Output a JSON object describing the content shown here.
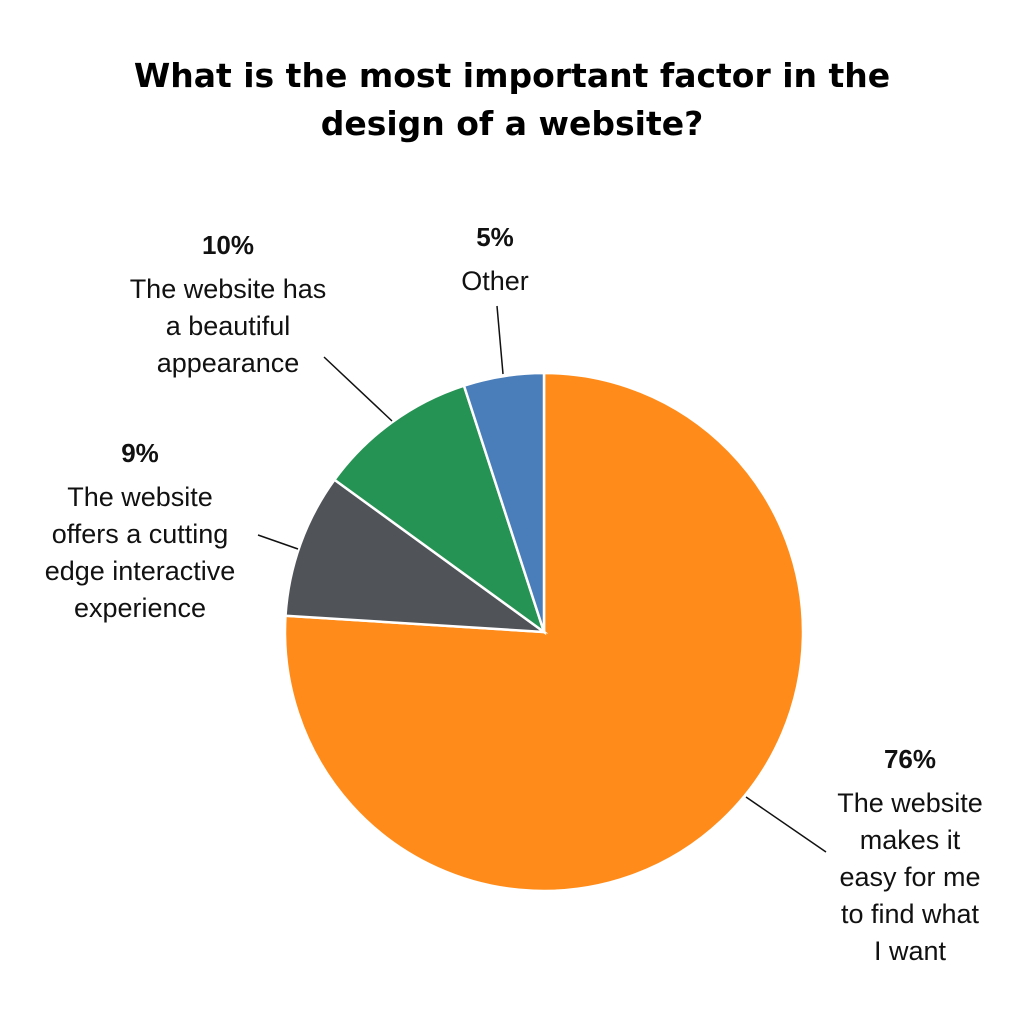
{
  "title_lines": [
    "What is the most important factor in the",
    "design of a website?"
  ],
  "chart_data": {
    "type": "pie",
    "title": "What is the most important factor in the design of a website?",
    "start": "12 o'clock, clockwise",
    "slices": [
      {
        "value": 76,
        "value_label": "76%",
        "label_lines": [
          "The website",
          "makes it",
          "easy for me",
          "to find what",
          "I want"
        ],
        "color": "#FF8C1A"
      },
      {
        "value": 9,
        "value_label": "9%",
        "label_lines": [
          "The website",
          "offers a cutting",
          "edge interactive",
          "experience"
        ],
        "color": "#505459"
      },
      {
        "value": 10,
        "value_label": "10%",
        "label_lines": [
          "The website has",
          "a beautiful",
          "appearance"
        ],
        "color": "#259353"
      },
      {
        "value": 5,
        "value_label": "5%",
        "label_lines": [
          "Other"
        ],
        "color": "#4A7EBB"
      }
    ]
  }
}
